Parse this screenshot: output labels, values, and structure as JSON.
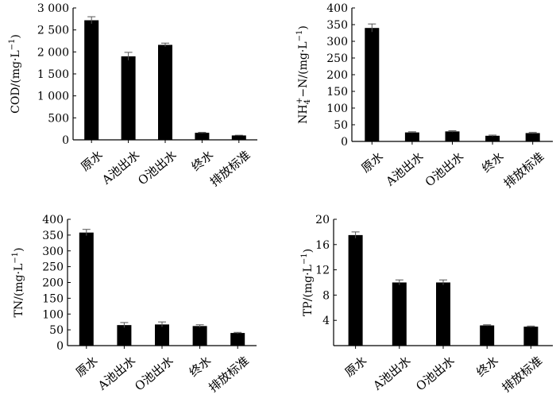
{
  "chart_data": [
    {
      "type": "bar",
      "ylabel": "COD/(mg·L",
      "ylabel_sup": "−1",
      "ylabel_tail": ")",
      "categories": [
        "原水",
        "A池出水",
        "O池出水",
        "终水",
        "排放标准"
      ],
      "values": [
        2720,
        1900,
        2160,
        160,
        100
      ],
      "errors": [
        80,
        90,
        40,
        10,
        5
      ],
      "ylim": [
        0,
        3000
      ],
      "yticks": [
        0,
        500,
        1000,
        1500,
        2000,
        2500,
        3000
      ],
      "ytick_labels": [
        "0",
        "500",
        "1 000",
        "1 500",
        "2 000",
        "2 500",
        "3 000"
      ]
    },
    {
      "type": "bar",
      "ylabel": "NH",
      "ylabel_sub": "4",
      "ylabel_sup": "+",
      "ylabel_tail": "−N/(mg·L",
      "ylabel_sup2": "−1",
      "ylabel_tail2": ")",
      "categories": [
        "原水",
        "A池出水",
        "O池出水",
        "终水",
        "排放标准"
      ],
      "values": [
        340,
        27,
        30,
        17,
        25
      ],
      "errors": [
        12,
        2,
        2,
        2,
        2
      ],
      "ylim": [
        0,
        400
      ],
      "yticks": [
        0,
        50,
        100,
        150,
        200,
        250,
        300,
        350,
        400
      ],
      "ytick_labels": [
        "0",
        "50",
        "100",
        "150",
        "200",
        "250",
        "300",
        "350",
        "400"
      ]
    },
    {
      "type": "bar",
      "ylabel": "TN/(mg·L",
      "ylabel_sup": "−1",
      "ylabel_tail": ")",
      "categories": [
        "原水",
        "A池出水",
        "O池出水",
        "终水",
        "排放标准"
      ],
      "values": [
        358,
        65,
        67,
        62,
        40
      ],
      "errors": [
        10,
        8,
        8,
        4,
        2
      ],
      "ylim": [
        0,
        400
      ],
      "yticks": [
        0,
        50,
        100,
        150,
        200,
        250,
        300,
        350,
        400
      ],
      "ytick_labels": [
        "0",
        "50",
        "100",
        "150",
        "200",
        "250",
        "300",
        "350",
        "400"
      ]
    },
    {
      "type": "bar",
      "ylabel": "TP/(mg·L",
      "ylabel_sup": "−1",
      "ylabel_tail": ")",
      "categories": [
        "原水",
        "A池出水",
        "O池出水",
        "终水",
        "排放标准"
      ],
      "values": [
        17.5,
        10.0,
        10.0,
        3.2,
        3.0
      ],
      "errors": [
        0.5,
        0.4,
        0.4,
        0.1,
        0.1
      ],
      "ylim": [
        0,
        20
      ],
      "yticks": [
        4,
        8,
        12,
        16,
        20
      ],
      "ytick_labels": [
        "4",
        "8",
        "12",
        "16",
        "20"
      ]
    }
  ]
}
